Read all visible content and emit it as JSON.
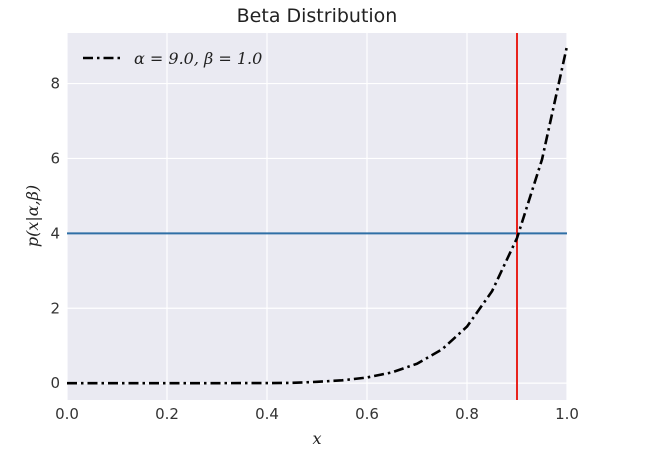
{
  "chart_data": {
    "type": "line",
    "title": "Beta Distribution",
    "xlabel": "x",
    "ylabel": "p(x|α,β)",
    "xlim": [
      0.0,
      1.0
    ],
    "ylim": [
      -0.45,
      9.35
    ],
    "x_ticks": [
      0.0,
      0.2,
      0.4,
      0.6,
      0.8,
      1.0
    ],
    "x_tick_labels": [
      "0.0",
      "0.2",
      "0.4",
      "0.6",
      "0.8",
      "1.0"
    ],
    "y_ticks": [
      0,
      2,
      4,
      6,
      8
    ],
    "y_tick_labels": [
      "0",
      "2",
      "4",
      "6",
      "8"
    ],
    "grid": true,
    "legend_position": "top-left",
    "series": [
      {
        "name": "α = 9.0,  β = 1.0",
        "style": "dash-dot",
        "color": "#000000",
        "x": [
          0.0,
          0.1,
          0.2,
          0.3,
          0.4,
          0.45,
          0.5,
          0.55,
          0.6,
          0.65,
          0.7,
          0.75,
          0.8,
          0.85,
          0.9,
          0.95,
          1.0
        ],
        "y": [
          0.0,
          0.0,
          0.0,
          0.0,
          0.0024,
          0.0076,
          0.0352,
          0.0748,
          0.151,
          0.288,
          0.519,
          0.901,
          1.51,
          2.453,
          3.874,
          5.971,
          9.0
        ]
      }
    ],
    "reference_lines": [
      {
        "orientation": "horizontal",
        "value": 4.0,
        "color": "#2f6fa6"
      },
      {
        "orientation": "vertical",
        "value": 0.9,
        "color": "#e8231d"
      }
    ]
  }
}
